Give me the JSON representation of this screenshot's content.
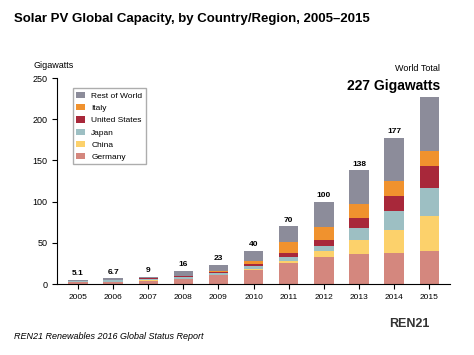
{
  "chart_data": {
    "type": "bar",
    "stacked": true,
    "title": "Solar PV Global Capacity, by Country/Region, 2005–2015",
    "y_label": "Gigawatts",
    "categories": [
      "2005",
      "2006",
      "2007",
      "2008",
      "2009",
      "2010",
      "2011",
      "2012",
      "2013",
      "2014",
      "2015"
    ],
    "series": [
      {
        "name": "Germany",
        "color": "#d4877e",
        "values": [
          1.9,
          2.8,
          4.2,
          6.1,
          10.6,
          17.6,
          25,
          32.6,
          36,
          38,
          40
        ]
      },
      {
        "name": "China",
        "color": "#fcd16b",
        "values": [
          0.07,
          0.08,
          0.1,
          0.14,
          0.3,
          0.8,
          3.3,
          7,
          18,
          28,
          43
        ]
      },
      {
        "name": "Japan",
        "color": "#9dbfc3",
        "values": [
          1.4,
          1.7,
          1.9,
          2.1,
          2.6,
          3.6,
          4.9,
          6.6,
          13.6,
          23,
          34
        ]
      },
      {
        "name": "United States",
        "color": "#a8283a",
        "values": [
          0.5,
          0.6,
          0.8,
          1.2,
          1.6,
          2.5,
          4.4,
          7.2,
          12,
          18,
          26
        ]
      },
      {
        "name": "Italy",
        "color": "#f0922e",
        "values": [
          0.05,
          0.1,
          0.1,
          0.5,
          1.2,
          3.5,
          12.8,
          16.4,
          18,
          18.5,
          19
        ]
      },
      {
        "name": "Rest of World",
        "color": "#8c8c9a",
        "values": [
          1.2,
          1.42,
          1.9,
          5.96,
          6.7,
          12,
          19.6,
          30.2,
          40.4,
          51.5,
          65
        ]
      }
    ],
    "totals": [
      5.1,
      6.7,
      9,
      16,
      23,
      40,
      70,
      100,
      138,
      177,
      227
    ],
    "total_labels": [
      "5.1",
      "6.7",
      "9",
      "16",
      "23",
      "40",
      "70",
      "100",
      "138",
      "177",
      "227 Gigawatts"
    ],
    "total_heading": "World Total",
    "ylim": [
      0,
      250
    ],
    "yticks": [
      0,
      50,
      100,
      150,
      200,
      250
    ],
    "grid": false,
    "legend": "upper left",
    "source": "REN21 Renewables 2016 Global Status Report",
    "logo": "REN21"
  }
}
